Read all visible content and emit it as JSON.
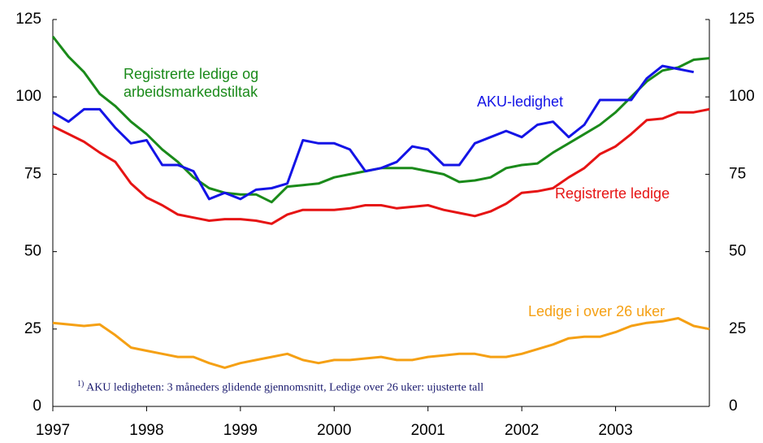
{
  "chart_data": {
    "type": "line",
    "x": [
      1997,
      1997.167,
      1997.333,
      1997.5,
      1997.667,
      1997.833,
      1998,
      1998.167,
      1998.333,
      1998.5,
      1998.667,
      1998.833,
      1999,
      1999.167,
      1999.333,
      1999.5,
      1999.667,
      1999.833,
      2000,
      2000.167,
      2000.333,
      2000.5,
      2000.667,
      2000.833,
      2001,
      2001.167,
      2001.333,
      2001.5,
      2001.667,
      2001.833,
      2002,
      2002.167,
      2002.333,
      2002.5,
      2002.667,
      2002.833,
      2003,
      2003.167,
      2003.333,
      2003.5,
      2003.667,
      2003.833,
      2004
    ],
    "series": [
      {
        "name": "Registrerte ledige og arbeidsmarkedstiltak",
        "color": "#1a8a1a",
        "values": [
          119.5,
          113,
          108,
          101,
          97,
          92,
          88,
          83,
          79,
          74,
          70.5,
          69,
          68.5,
          68.5,
          66,
          71,
          71.5,
          72,
          74,
          75,
          76,
          77,
          77,
          77,
          76,
          75,
          72.5,
          73,
          74,
          77,
          78,
          78.5,
          82,
          85,
          88,
          91,
          95,
          100,
          105,
          108.5,
          109.5,
          112,
          112.5
        ]
      },
      {
        "name": "AKU-ledighet",
        "color": "#1414e6",
        "values": [
          95,
          92,
          96,
          96,
          90,
          85,
          86,
          78,
          78,
          76,
          67,
          69,
          67,
          70,
          70.5,
          72,
          86,
          85,
          85,
          83,
          76,
          77,
          79,
          84,
          83,
          78,
          78,
          85,
          87,
          89,
          87,
          91,
          92,
          87,
          91,
          99,
          99,
          99,
          106,
          110,
          109,
          108,
          null
        ]
      },
      {
        "name": "Registrerte ledige",
        "color": "#e61414",
        "values": [
          90.5,
          88,
          85.5,
          82,
          79,
          72,
          67.5,
          65,
          62,
          61,
          60,
          60.5,
          60.5,
          60,
          59,
          62,
          63.5,
          63.5,
          63.5,
          64,
          65,
          65,
          64,
          64.5,
          65,
          63.5,
          62.5,
          61.5,
          63,
          65.5,
          69,
          69.5,
          70.5,
          74,
          77,
          81.5,
          84,
          88,
          92.5,
          93,
          95,
          95,
          96
        ]
      },
      {
        "name": "Ledige i over 26 uker",
        "color": "#f5a014",
        "values": [
          27,
          26.5,
          26,
          26.5,
          23,
          19,
          18,
          17,
          16,
          16,
          14,
          12.5,
          14,
          15,
          16,
          17,
          15,
          14,
          15,
          15,
          15.5,
          16,
          15,
          15,
          16,
          16.5,
          17,
          17,
          16,
          16,
          17,
          18.5,
          20,
          22,
          22.5,
          22.5,
          24,
          26,
          27,
          27.5,
          28.5,
          26,
          25
        ]
      }
    ],
    "xlim": [
      1997,
      2004
    ],
    "xticks": [
      1997,
      1998,
      1999,
      2000,
      2001,
      2002,
      2003
    ],
    "ylim": [
      0,
      125
    ],
    "yticks": [
      0,
      25,
      50,
      75,
      100,
      125
    ],
    "y2lim": [
      0,
      125
    ],
    "y2ticks": [
      0,
      25,
      50,
      75,
      100,
      125
    ],
    "footnote_mark": "1)",
    "footnote": "AKU ledigheten: 3 måneders glidende gjennomsnitt, Ledige over 26 uker: ujusterte tall"
  }
}
